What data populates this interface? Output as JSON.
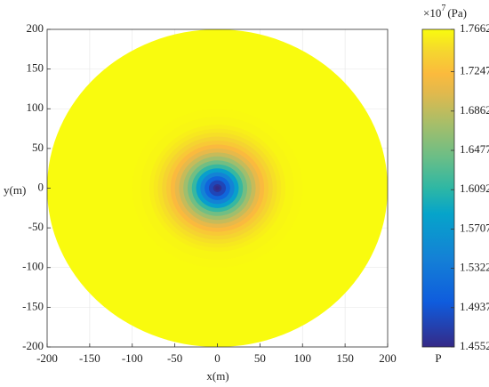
{
  "chart_data": {
    "type": "radial-field",
    "x_label": "x(m)",
    "y_label": "y(m)",
    "xlim": [
      -200,
      200
    ],
    "ylim": [
      -200,
      200
    ],
    "xticks": [
      -200,
      -150,
      -100,
      -50,
      0,
      50,
      100,
      150,
      200
    ],
    "yticks": [
      -200,
      -150,
      -100,
      -50,
      0,
      50,
      100,
      150,
      200
    ],
    "grid": true,
    "r": [
      0,
      5,
      10,
      15,
      20,
      25,
      30,
      35,
      40,
      45,
      50,
      55,
      60,
      65,
      70,
      75,
      80,
      90,
      100,
      200
    ],
    "values": [
      1.4552,
      1.462,
      1.48,
      1.51,
      1.545,
      1.58,
      1.615,
      1.645,
      1.67,
      1.69,
      1.708,
      1.722,
      1.734,
      1.743,
      1.75,
      1.755,
      1.759,
      1.763,
      1.765,
      1.7662
    ],
    "clim": [
      1.4552,
      1.7662
    ],
    "cticks": [
      1.4552,
      1.4937,
      1.5322,
      1.5707,
      1.6092,
      1.6477,
      1.6862,
      1.7247,
      1.7662
    ],
    "colorbar_label": {
      "base": "×10",
      "exponent": "7",
      "unit": "(Pa)"
    },
    "colorbar_title": "P",
    "colormap": "parula"
  }
}
